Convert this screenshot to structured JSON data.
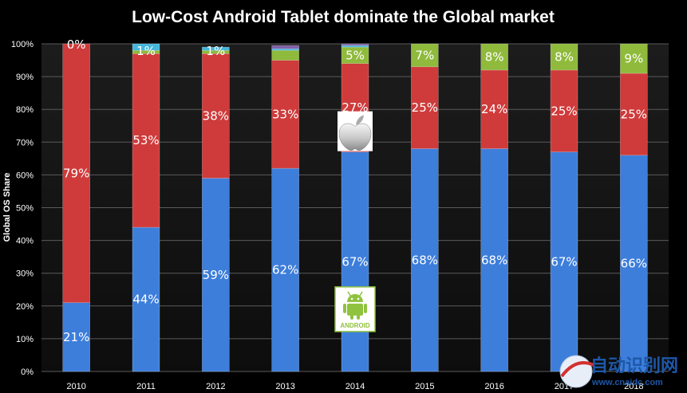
{
  "chart_data": {
    "type": "bar",
    "stacked": true,
    "title": "Low-Cost Android Tablet dominate the Global market",
    "ylabel": "Global OS Share",
    "xlabel": "",
    "ylim": [
      0,
      100
    ],
    "yticks": [
      "0%",
      "10%",
      "20%",
      "30%",
      "40%",
      "50%",
      "60%",
      "70%",
      "80%",
      "90%",
      "100%"
    ],
    "grid": true,
    "legend": "none",
    "categories": [
      "2010",
      "2011",
      "2012",
      "2013",
      "2014",
      "2015",
      "2016",
      "2017",
      "2018"
    ],
    "series": [
      {
        "color": "#3d7edb",
        "values": [
          21,
          44,
          59,
          62,
          67,
          68,
          68,
          67,
          66
        ],
        "labels": [
          "21%",
          "44%",
          "59%",
          "62%",
          "67%",
          "68%",
          "68%",
          "67%",
          "66%"
        ]
      },
      {
        "color": "#cf3b3b",
        "values": [
          79,
          53,
          38,
          33,
          27,
          25,
          24,
          25,
          25
        ],
        "labels": [
          "79%",
          "53%",
          "38%",
          "33%",
          "27%",
          "25%",
          "24%",
          "25%",
          "25%"
        ]
      },
      {
        "color": "#8fba3c",
        "values": [
          0,
          1,
          1,
          3,
          5,
          7,
          8,
          8,
          9
        ],
        "labels": [
          "0%",
          "1%",
          "1%",
          "",
          "5%",
          "7%",
          "8%",
          "8%",
          "9%"
        ]
      },
      {
        "color": "#45b6dc",
        "values": [
          0,
          2,
          1,
          0.5,
          0.5,
          0,
          0,
          0,
          0
        ],
        "labels": [
          "",
          "",
          "",
          "",
          "",
          "",
          "",
          "",
          ""
        ]
      },
      {
        "color": "#8060a8",
        "values": [
          0,
          0,
          0,
          1,
          0.5,
          0,
          0,
          0,
          0
        ],
        "labels": [
          "",
          "",
          "",
          "",
          "",
          "",
          "",
          "",
          ""
        ]
      }
    ],
    "icons": [
      {
        "name": "apple-logo-icon",
        "category": "2014",
        "series": 1
      },
      {
        "name": "android-logo-icon",
        "category": "2014",
        "series": 0,
        "text": "ANDROID"
      }
    ]
  },
  "watermark": {
    "text": "自动识别网",
    "url": "www.cnaidc.com"
  }
}
